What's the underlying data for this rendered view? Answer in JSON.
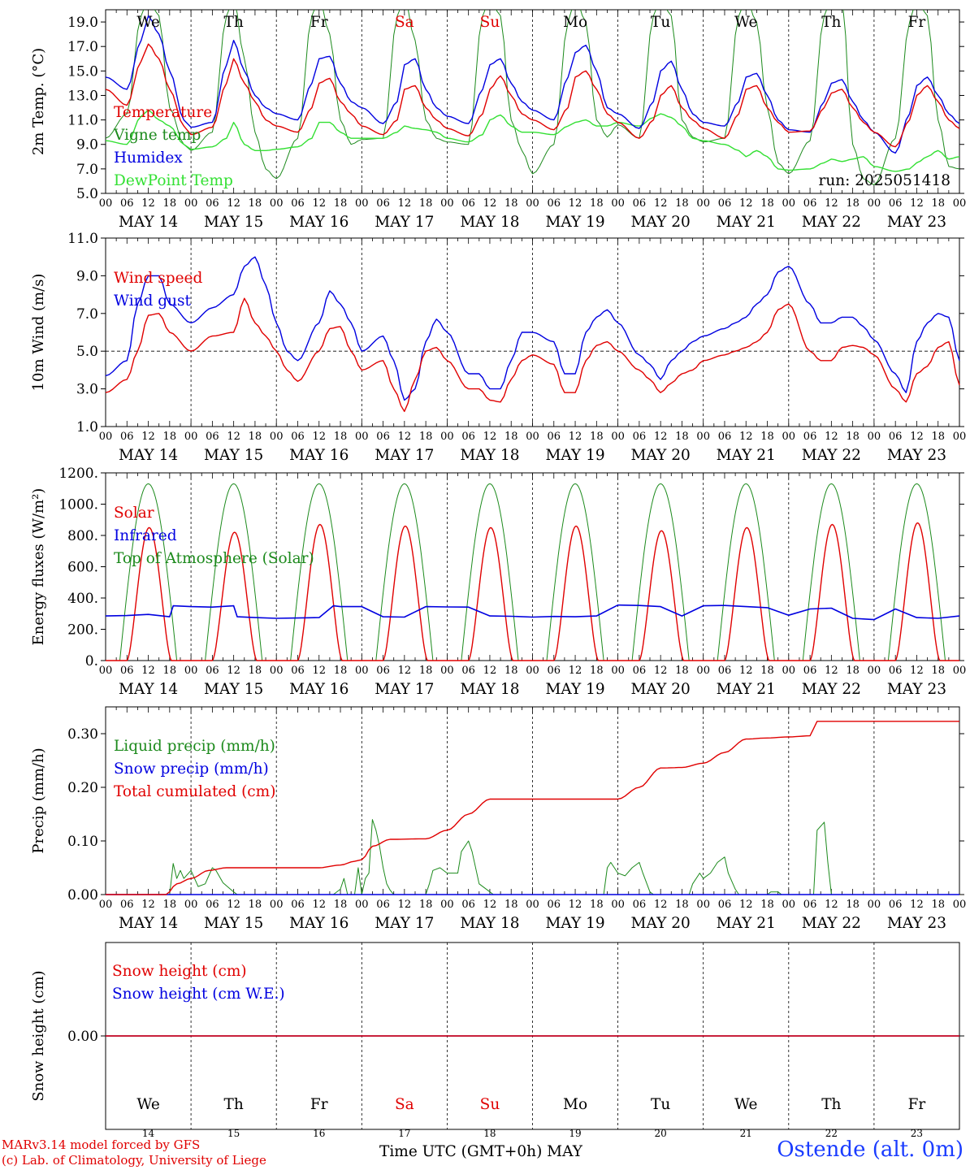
{
  "chart_data": [
    {
      "type": "line",
      "ylabel": "2m Temp. (°C)",
      "ylim": [
        5.0,
        20.0
      ],
      "yticks": [
        "5.0",
        "7.0",
        "9.0",
        "11.0",
        "13.0",
        "15.0",
        "17.0",
        "19.0"
      ],
      "run_label": "run: 2025051418",
      "legend": [
        "Temperature",
        "Vigne temp",
        "Humidex",
        "DewPoint Temp"
      ],
      "x_hours": [
        0,
        6,
        10,
        12,
        15,
        18,
        22,
        24,
        30,
        34,
        36,
        39,
        42,
        45,
        48,
        54,
        58,
        60,
        63,
        66,
        69,
        72,
        78,
        82,
        84,
        87,
        90,
        93,
        96,
        102,
        106,
        108,
        111,
        114,
        117,
        120,
        126,
        130,
        132,
        135,
        138,
        141,
        144,
        150,
        154,
        156,
        159,
        162,
        165,
        168,
        174,
        178,
        180,
        183,
        186,
        189,
        192,
        198,
        202,
        204,
        207,
        210,
        213,
        216,
        222,
        226,
        228,
        231,
        234,
        237,
        240
      ],
      "series": [
        {
          "name": "Temperature",
          "color": "#e00000",
          "values": [
            13.5,
            12.2,
            15.8,
            17.2,
            16.0,
            13.5,
            10.5,
            9.8,
            10.4,
            14.0,
            16.0,
            14.0,
            12.5,
            11.0,
            10.5,
            10.0,
            12.0,
            14.0,
            14.4,
            12.5,
            11.5,
            10.5,
            9.8,
            11.0,
            13.5,
            13.8,
            12.0,
            11.0,
            10.3,
            9.7,
            11.5,
            13.5,
            14.6,
            13.0,
            11.5,
            11.0,
            10.2,
            12.0,
            14.5,
            15.0,
            13.5,
            11.5,
            10.8,
            9.5,
            11.0,
            13.0,
            13.8,
            12.0,
            11.0,
            10.3,
            9.5,
            11.5,
            13.5,
            13.8,
            12.0,
            10.8,
            10.0,
            10.1,
            12.0,
            13.2,
            13.5,
            12.0,
            10.8,
            10.0,
            8.8,
            11.0,
            13.0,
            13.8,
            12.5,
            11.0,
            10.3
          ]
        },
        {
          "name": "Vigne temp",
          "color": "#1c8a1c",
          "values": [
            9.5,
            11.5,
            19.5,
            21.0,
            19.5,
            12.0,
            9.0,
            8.5,
            10.0,
            19.5,
            21.0,
            16.0,
            10.0,
            7.0,
            6.2,
            9.5,
            19.5,
            21.0,
            18.0,
            11.0,
            9.0,
            9.4,
            9.5,
            19.5,
            21.0,
            17.5,
            11.0,
            9.5,
            9.2,
            9.0,
            19.5,
            21.0,
            19.5,
            11.0,
            8.5,
            6.6,
            9.0,
            19.0,
            21.0,
            19.0,
            11.0,
            9.6,
            10.6,
            9.5,
            19.5,
            21.0,
            19.5,
            11.0,
            9.6,
            9.2,
            9.5,
            19.5,
            21.0,
            19.0,
            12.0,
            7.5,
            6.6,
            9.3,
            19.5,
            21.0,
            21.0,
            9.0,
            6.2,
            5.7,
            9.5,
            19.0,
            21.0,
            19.5,
            11.0,
            7.2,
            7.0
          ]
        },
        {
          "name": "Humidex",
          "color": "#0000e0",
          "values": [
            14.5,
            13.5,
            17.5,
            19.5,
            18.0,
            15.0,
            11.0,
            10.4,
            10.8,
            15.5,
            17.5,
            15.0,
            13.0,
            12.0,
            11.5,
            11.0,
            14.0,
            16.0,
            16.2,
            14.0,
            12.5,
            12.0,
            10.7,
            12.5,
            15.5,
            16.0,
            13.5,
            12.0,
            11.3,
            10.7,
            13.5,
            15.5,
            16.0,
            14.0,
            12.5,
            11.8,
            11.0,
            14.5,
            16.5,
            17.1,
            15.0,
            12.0,
            11.5,
            10.3,
            12.5,
            15.0,
            15.8,
            13.5,
            11.5,
            10.8,
            10.5,
            12.5,
            14.5,
            14.8,
            13.0,
            11.0,
            10.2,
            10.0,
            12.5,
            14.0,
            14.3,
            12.5,
            11.0,
            10.0,
            8.3,
            11.5,
            13.8,
            14.5,
            13.0,
            11.5,
            10.7
          ]
        },
        {
          "name": "DewPoint Temp",
          "color": "#33e033",
          "values": [
            9.3,
            9.0,
            11.3,
            11.8,
            11.0,
            10.5,
            9.0,
            8.6,
            8.8,
            9.5,
            10.8,
            9.0,
            8.5,
            8.5,
            8.6,
            8.8,
            9.5,
            10.8,
            10.8,
            10.0,
            9.5,
            9.5,
            9.5,
            10.0,
            10.5,
            10.3,
            10.2,
            10.0,
            9.5,
            9.2,
            9.8,
            11.0,
            11.4,
            10.5,
            10.0,
            10.0,
            9.8,
            10.5,
            10.8,
            11.0,
            10.5,
            10.5,
            10.8,
            10.5,
            11.2,
            11.5,
            11.2,
            10.5,
            9.5,
            9.3,
            9.0,
            8.5,
            8.0,
            8.5,
            8.0,
            7.0,
            6.9,
            7.0,
            7.5,
            7.8,
            7.6,
            7.8,
            8.0,
            7.2,
            6.8,
            7.0,
            7.5,
            8.0,
            8.5,
            7.8,
            8.0
          ]
        }
      ]
    },
    {
      "type": "line",
      "ylabel": "10m Wind (m/s)",
      "ylim": [
        1.0,
        11.0
      ],
      "yticks": [
        "1.0",
        "3.0",
        "5.0",
        "7.0",
        "9.0",
        "11.0"
      ],
      "reference_line": 5.0,
      "legend": [
        "Wind speed",
        "Wind gust"
      ],
      "x_hours": [
        0,
        6,
        9,
        12,
        15,
        18,
        24,
        30,
        36,
        39,
        42,
        45,
        48,
        51,
        54,
        60,
        63,
        66,
        69,
        72,
        78,
        81,
        84,
        87,
        90,
        93,
        96,
        102,
        105,
        108,
        111,
        114,
        117,
        120,
        126,
        129,
        132,
        135,
        138,
        141,
        144,
        150,
        153,
        156,
        159,
        162,
        165,
        168,
        174,
        177,
        180,
        183,
        186,
        189,
        192,
        198,
        201,
        204,
        207,
        210,
        213,
        216,
        222,
        225,
        228,
        231,
        234,
        237,
        240
      ],
      "series": [
        {
          "name": "Wind speed",
          "color": "#e00000",
          "values": [
            2.8,
            3.5,
            5.0,
            6.9,
            7.0,
            6.0,
            5.0,
            5.8,
            6.0,
            7.8,
            6.5,
            5.8,
            5.0,
            4.0,
            3.4,
            5.0,
            6.2,
            6.3,
            5.0,
            4.0,
            4.5,
            3.0,
            1.8,
            3.5,
            5.0,
            5.2,
            4.5,
            3.0,
            3.0,
            2.4,
            2.3,
            3.5,
            4.5,
            4.8,
            4.3,
            2.8,
            2.8,
            4.5,
            5.3,
            5.5,
            5.0,
            4.0,
            3.5,
            2.8,
            3.3,
            3.8,
            4.0,
            4.5,
            4.8,
            5.0,
            5.2,
            5.5,
            6.0,
            7.2,
            7.5,
            5.0,
            4.5,
            4.5,
            5.2,
            5.3,
            5.2,
            4.8,
            3.0,
            2.3,
            3.8,
            4.2,
            5.2,
            5.5,
            3.2
          ]
        },
        {
          "name": "Wind gust",
          "color": "#0000e0",
          "values": [
            3.7,
            4.5,
            7.5,
            9.0,
            9.0,
            7.5,
            6.5,
            7.3,
            8.0,
            9.5,
            10.0,
            8.5,
            6.5,
            5.0,
            4.5,
            6.5,
            8.2,
            7.5,
            6.5,
            5.0,
            5.8,
            4.5,
            2.4,
            3.0,
            5.5,
            6.7,
            6.0,
            3.8,
            3.8,
            3.0,
            3.0,
            4.5,
            6.0,
            6.0,
            5.5,
            3.8,
            3.8,
            6.0,
            6.8,
            7.2,
            6.5,
            4.8,
            4.3,
            3.5,
            4.5,
            5.0,
            5.5,
            5.8,
            6.2,
            6.5,
            6.8,
            7.5,
            8.0,
            9.2,
            9.5,
            7.5,
            6.5,
            6.5,
            6.8,
            6.8,
            6.3,
            5.6,
            3.8,
            2.8,
            5.5,
            6.5,
            7.0,
            6.8,
            4.5
          ]
        }
      ]
    },
    {
      "type": "line",
      "ylabel": "Energy fluxes (W/m²)",
      "ylim": [
        0,
        1200
      ],
      "yticks": [
        "0.",
        "200.",
        "400.",
        "600.",
        "800.",
        "1000.",
        "1200."
      ],
      "legend": [
        "Solar",
        "Infrared",
        "Top of Atmosphere (Solar)"
      ],
      "solar_peaks": [
        850,
        820,
        870,
        860,
        850,
        860,
        830,
        850,
        870,
        880
      ],
      "toa_peak": 1130,
      "infrared": {
        "x_hours": [
          0,
          6,
          12,
          18,
          19,
          24,
          30,
          36,
          37,
          42,
          48,
          54,
          60,
          64,
          66,
          72,
          78,
          84,
          90,
          96,
          102,
          108,
          114,
          120,
          126,
          132,
          138,
          144,
          150,
          156,
          162,
          168,
          174,
          180,
          186,
          192,
          198,
          204,
          210,
          216,
          222,
          228,
          234,
          240
        ],
        "values": [
          285,
          288,
          295,
          280,
          350,
          345,
          342,
          350,
          280,
          275,
          270,
          272,
          275,
          350,
          345,
          345,
          280,
          278,
          345,
          343,
          342,
          285,
          283,
          278,
          282,
          280,
          285,
          355,
          352,
          345,
          285,
          350,
          352,
          345,
          338,
          290,
          330,
          335,
          270,
          262,
          330,
          275,
          270,
          285
        ]
      }
    },
    {
      "type": "line",
      "ylabel": "Precip (mm/h)",
      "ylim": [
        0.0,
        0.35
      ],
      "yticks": [
        "0.00",
        "0.10",
        "0.20",
        "0.30"
      ],
      "legend": [
        "Liquid precip (mm/h)",
        "Snow precip (mm/h)",
        "Total cumulated (cm)"
      ],
      "series": [
        {
          "name": "Liquid precip (mm/h)",
          "color": "#1c8a1c",
          "x_hours": [
            0,
            18,
            19,
            20,
            21,
            22,
            24,
            26,
            28,
            30,
            31,
            33,
            36,
            37,
            38,
            64,
            66,
            67,
            68,
            70,
            71,
            72,
            73,
            74,
            75,
            76,
            77,
            78,
            79,
            80,
            81,
            90,
            91,
            92,
            94,
            96,
            99,
            100,
            102,
            103,
            105,
            108,
            109,
            112,
            140,
            141,
            142,
            144,
            146,
            148,
            150,
            151,
            153,
            154,
            164,
            165,
            167,
            168,
            170,
            172,
            174,
            175,
            177,
            178,
            180,
            186,
            187,
            189,
            190,
            199,
            200,
            202,
            203,
            204,
            240
          ],
          "values": [
            0,
            0,
            0.058,
            0.03,
            0.045,
            0.03,
            0.045,
            0.015,
            0.02,
            0.05,
            0.045,
            0.022,
            0.005,
            0,
            0,
            0,
            0.01,
            0.03,
            0,
            0,
            0.05,
            0,
            0.03,
            0.04,
            0.14,
            0.12,
            0.09,
            0.05,
            0.02,
            0.008,
            0,
            0,
            0.02,
            0.045,
            0.05,
            0.04,
            0.04,
            0.08,
            0.1,
            0.08,
            0.02,
            0.005,
            0,
            0,
            0,
            0.05,
            0.06,
            0.04,
            0.035,
            0.05,
            0.06,
            0.04,
            0.005,
            0,
            0,
            0.02,
            0.04,
            0.03,
            0.04,
            0.06,
            0.07,
            0.04,
            0.01,
            0,
            0,
            0,
            0.005,
            0.005,
            0,
            0,
            0.12,
            0.135,
            0.06,
            0,
            0
          ]
        },
        {
          "name": "Snow precip (mm/h)",
          "color": "#0000e0",
          "x_hours": [
            0,
            240
          ],
          "values": [
            0,
            0
          ]
        },
        {
          "name": "Total cumulated (cm)",
          "color": "#e00000",
          "x_hours": [
            0,
            17,
            20,
            24,
            29,
            34,
            60,
            66,
            70,
            72,
            75,
            80,
            90,
            96,
            102,
            108,
            120,
            144,
            150,
            156,
            162,
            168,
            174,
            180,
            186,
            192,
            198,
            200,
            240
          ],
          "values": [
            0,
            0,
            0.02,
            0.03,
            0.045,
            0.05,
            0.05,
            0.055,
            0.062,
            0.065,
            0.09,
            0.103,
            0.104,
            0.12,
            0.15,
            0.178,
            0.178,
            0.178,
            0.2,
            0.236,
            0.237,
            0.245,
            0.265,
            0.29,
            0.292,
            0.294,
            0.296,
            0.323,
            0.323
          ]
        }
      ]
    },
    {
      "type": "line",
      "ylabel": "Snow height (cm)",
      "ylim": [
        -1,
        1
      ],
      "yticks": [
        "0.00"
      ],
      "legend": [
        "Snow height (cm)",
        "Snow height (cm W.E.)"
      ],
      "series": [
        {
          "name": "Snow height (cm)",
          "color": "#e00000",
          "x_hours": [
            0,
            240
          ],
          "values": [
            0,
            0
          ]
        },
        {
          "name": "Snow height (cm W.E.)",
          "color": "#0000e0",
          "x_hours": [
            0,
            240
          ],
          "values": [
            0,
            0
          ]
        }
      ]
    }
  ],
  "colors": {
    "temperature": "#e00000",
    "vigne": "#1c8a1c",
    "humidex": "#0000e0",
    "dewpoint": "#33e033",
    "weekend": "#e00000",
    "text": "#000000",
    "footer": "#e00000",
    "station": "#1a3cff"
  },
  "days": [
    {
      "abbr": "We",
      "date": "MAY 14",
      "num": "14",
      "weekend": false
    },
    {
      "abbr": "Th",
      "date": "MAY 15",
      "num": "15",
      "weekend": false
    },
    {
      "abbr": "Fr",
      "date": "MAY 16",
      "num": "16",
      "weekend": false
    },
    {
      "abbr": "Sa",
      "date": "MAY 17",
      "num": "17",
      "weekend": true
    },
    {
      "abbr": "Su",
      "date": "MAY 18",
      "num": "18",
      "weekend": true
    },
    {
      "abbr": "Mo",
      "date": "MAY 19",
      "num": "19",
      "weekend": false
    },
    {
      "abbr": "Tu",
      "date": "MAY 20",
      "num": "20",
      "weekend": false
    },
    {
      "abbr": "We",
      "date": "MAY 21",
      "num": "21",
      "weekend": false
    },
    {
      "abbr": "Th",
      "date": "MAY 22",
      "num": "22",
      "weekend": false
    },
    {
      "abbr": "Fr",
      "date": "MAY 23",
      "num": "23",
      "weekend": false
    }
  ],
  "hour_labels": [
    "00",
    "06",
    "12",
    "18"
  ],
  "x_axis_title": "Time UTC (GMT+0h) MAY",
  "footer": {
    "line1": "MARv3.14 model forced by GFS",
    "line2": "(c) Lab. of Climatology, University of Liege"
  },
  "station": "Ostende (alt. 0m)"
}
